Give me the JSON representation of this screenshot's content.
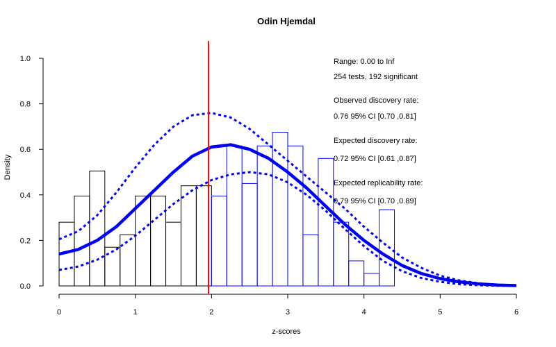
{
  "chart_data": {
    "type": "bar",
    "title": "Odin Hjemdal",
    "xlabel": "z-scores",
    "ylabel": "Density",
    "xlim": [
      0,
      6
    ],
    "ylim": [
      0,
      1.0
    ],
    "x_ticks": [
      "0",
      "1",
      "2",
      "3",
      "4",
      "5",
      "6"
    ],
    "y_ticks": [
      "0.0",
      "0.2",
      "0.4",
      "0.6",
      "0.8",
      "1.0"
    ],
    "grid": false,
    "significance_threshold": 1.96,
    "histogram": {
      "bin_width": 0.2,
      "bins": [
        {
          "start": 0.0,
          "density": 0.28
        },
        {
          "start": 0.2,
          "density": 0.395
        },
        {
          "start": 0.4,
          "density": 0.505
        },
        {
          "start": 0.6,
          "density": 0.17
        },
        {
          "start": 0.8,
          "density": 0.225
        },
        {
          "start": 1.0,
          "density": 0.395
        },
        {
          "start": 1.2,
          "density": 0.395
        },
        {
          "start": 1.4,
          "density": 0.28
        },
        {
          "start": 1.6,
          "density": 0.44
        },
        {
          "start": 1.8,
          "density": 0.44
        },
        {
          "start": 2.0,
          "density": 0.395
        },
        {
          "start": 2.2,
          "density": 0.615
        },
        {
          "start": 2.4,
          "density": 0.45
        },
        {
          "start": 2.6,
          "density": 0.615
        },
        {
          "start": 2.8,
          "density": 0.675
        },
        {
          "start": 3.0,
          "density": 0.615
        },
        {
          "start": 3.2,
          "density": 0.225
        },
        {
          "start": 3.4,
          "density": 0.56
        },
        {
          "start": 3.6,
          "density": 0.28
        },
        {
          "start": 3.8,
          "density": 0.11
        },
        {
          "start": 4.0,
          "density": 0.055
        },
        {
          "start": 4.2,
          "density": 0.335
        }
      ]
    },
    "fitted_curve": {
      "x": [
        0,
        0.25,
        0.5,
        0.75,
        1.0,
        1.25,
        1.5,
        1.75,
        2.0,
        2.25,
        2.5,
        2.75,
        3.0,
        3.25,
        3.5,
        3.75,
        4.0,
        4.25,
        4.5,
        4.75,
        5.0,
        5.25,
        5.5,
        5.75,
        6.0
      ],
      "y": [
        0.14,
        0.16,
        0.2,
        0.26,
        0.34,
        0.42,
        0.5,
        0.57,
        0.61,
        0.62,
        0.6,
        0.56,
        0.5,
        0.43,
        0.35,
        0.27,
        0.2,
        0.14,
        0.09,
        0.055,
        0.032,
        0.018,
        0.009,
        0.004,
        0.0015
      ]
    },
    "ci_upper": {
      "x": [
        0,
        0.25,
        0.5,
        0.75,
        1.0,
        1.25,
        1.5,
        1.75,
        2.0,
        2.25,
        2.5,
        2.75,
        3.0,
        3.25,
        3.5,
        3.75,
        4.0,
        4.25,
        4.5,
        4.75,
        5.0,
        5.25,
        5.5,
        5.75,
        6.0
      ],
      "y": [
        0.205,
        0.24,
        0.31,
        0.41,
        0.52,
        0.62,
        0.7,
        0.75,
        0.76,
        0.74,
        0.69,
        0.62,
        0.55,
        0.48,
        0.41,
        0.34,
        0.26,
        0.19,
        0.125,
        0.08,
        0.045,
        0.024,
        0.012,
        0.005,
        0.002
      ]
    },
    "ci_lower": {
      "x": [
        0,
        0.25,
        0.5,
        0.75,
        1.0,
        1.25,
        1.5,
        1.75,
        2.0,
        2.25,
        2.5,
        2.75,
        3.0,
        3.25,
        3.5,
        3.75,
        4.0,
        4.25,
        4.5,
        4.75,
        5.0,
        5.25,
        5.5,
        5.75,
        6.0
      ],
      "y": [
        0.07,
        0.085,
        0.115,
        0.16,
        0.22,
        0.29,
        0.36,
        0.42,
        0.465,
        0.49,
        0.5,
        0.49,
        0.455,
        0.4,
        0.33,
        0.25,
        0.175,
        0.11,
        0.065,
        0.035,
        0.018,
        0.008,
        0.003,
        0.001,
        0.0005
      ]
    },
    "annotations": [
      "Range: 0.00 to Inf",
      "254 tests, 192 significant",
      "Observed discovery rate:",
      "0.76  95% CI [0.70 ,0.81]",
      "Expected discovery rate:",
      "0.72  95% CI [0.61 ,0.87]",
      "Expected replicability rate:",
      "0.79  95% CI [0.70 ,0.89]"
    ],
    "colors": {
      "nonsignificant_bars": "#000000",
      "significant_bars": "#0000ff",
      "curve": "#0000ee",
      "threshold": "#ff0000"
    }
  }
}
